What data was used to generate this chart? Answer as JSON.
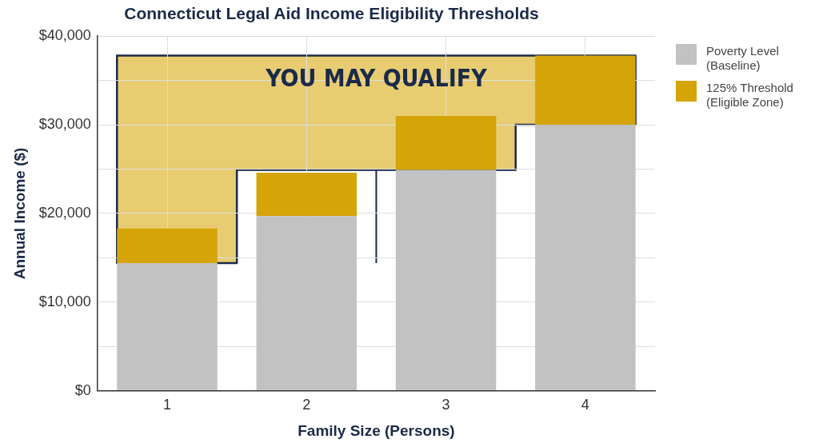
{
  "chart_data": {
    "type": "bar",
    "title": "Connecticut Legal Aid Income Eligibility Thresholds",
    "xlabel": "Family Size (Persons)",
    "ylabel": "Annual Income ($)",
    "categories": [
      "1",
      "2",
      "3",
      "4"
    ],
    "stacked": true,
    "series": [
      {
        "name": "Poverty Level (Baseline)",
        "color": "#c2c2c2",
        "values": [
          14400,
          19700,
          24900,
          30000
        ]
      },
      {
        "name": "125% Threshold (Eligible Zone)",
        "color": "#d4a408",
        "values": [
          3900,
          4900,
          6100,
          7800
        ]
      }
    ],
    "annotations": [
      "YOU MAY QUALIFY"
    ],
    "ylim": [
      0,
      40000
    ],
    "yticks": [
      {
        "value": 0,
        "label": "$0"
      },
      {
        "value": 5000,
        "label": null
      },
      {
        "value": 10000,
        "label": "$10,000"
      },
      {
        "value": 15000,
        "label": null
      },
      {
        "value": 20000,
        "label": "$20,000"
      },
      {
        "value": 25000,
        "label": null
      },
      {
        "value": 30000,
        "label": "$30,000"
      },
      {
        "value": 35000,
        "label": null
      },
      {
        "value": 40000,
        "label": "$40,000"
      }
    ],
    "grid": true,
    "legend": "top right"
  }
}
